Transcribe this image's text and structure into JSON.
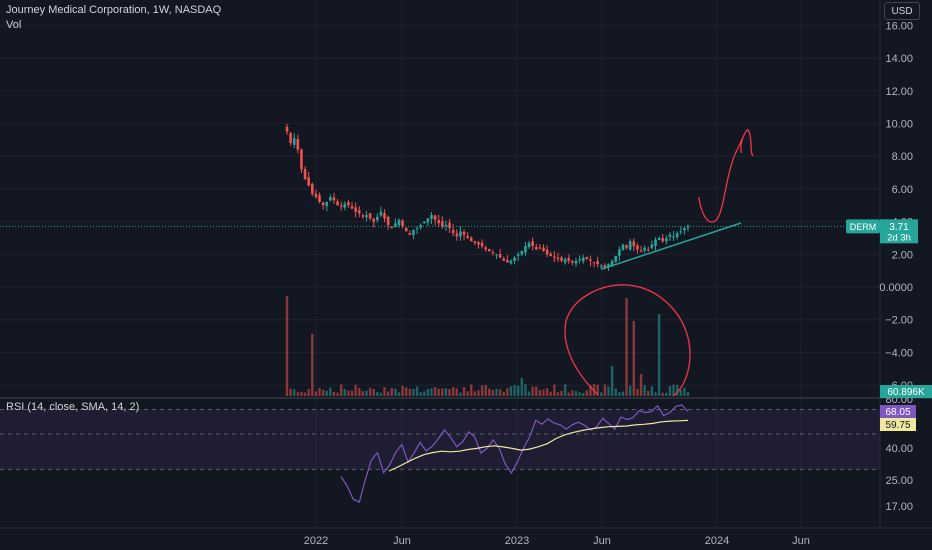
{
  "legend": {
    "title": "Journey Medical Corporation, 1W, NASDAQ",
    "volume": "Vol",
    "rsi": "RSI (14, close, SMA, 14, 2)"
  },
  "currency": "USD",
  "price_axis_labels": [
    "16.00",
    "14.00",
    "12.00",
    "10.00",
    "8.00",
    "6.00",
    "4.00",
    "2.00",
    "0.0000",
    "−2.00",
    "−4.00",
    "−6.00"
  ],
  "rsi_axis_labels": [
    "80.00",
    "60.00",
    "40.00",
    "25.00",
    "17.00"
  ],
  "time_axis_labels": [
    "2022",
    "Jun",
    "2023",
    "Jun",
    "2024",
    "Jun"
  ],
  "badges": {
    "ticker": "DERM",
    "price": "3.71",
    "countdown": "2d 3h",
    "volume": "60.896K",
    "rsi": "68.05",
    "rsi_ma": "59.75"
  },
  "colors": {
    "background": "#131722",
    "up": "#26a69a",
    "down": "#ef5350",
    "rsi": "#7e57c2",
    "rsi_ma": "#f1e8a0",
    "drawing": "#f23645",
    "trendline": "#26a69a"
  },
  "chart_data": [
    {
      "type": "candlestick",
      "title": "Journey Medical Corporation, 1W, NASDAQ",
      "x_range": [
        "2021-11",
        "2024-08"
      ],
      "ylim": [
        -6,
        16
      ],
      "last_price": 3.71,
      "weekly_closes_approx": [
        9.5,
        8.8,
        9.1,
        8.4,
        7.2,
        6.6,
        6.2,
        5.7,
        5.5,
        5.2,
        5.0,
        5.2,
        5.5,
        5.3,
        5.0,
        4.9,
        5.1,
        5.0,
        4.8,
        4.6,
        4.5,
        4.3,
        4.4,
        4.2,
        4.0,
        4.3,
        4.6,
        4.2,
        3.8,
        3.6,
        3.9,
        4.1,
        3.7,
        3.4,
        3.2,
        3.5,
        3.6,
        3.8,
        4.0,
        4.2,
        4.4,
        4.1,
        3.9,
        3.7,
        3.8,
        3.6,
        3.3,
        3.1,
        3.4,
        3.2,
        3.0,
        2.8,
        2.7,
        2.6,
        2.5,
        2.3,
        2.2,
        2.1,
        2.0,
        1.8,
        1.6,
        1.5,
        1.6,
        1.8,
        2.0,
        2.2,
        2.5,
        2.7,
        2.5,
        2.3,
        2.4,
        2.2,
        2.0,
        1.9,
        1.8,
        1.7,
        1.6,
        1.7,
        1.6,
        1.5,
        1.6,
        1.7,
        1.8,
        1.7,
        1.6,
        1.5,
        1.4,
        1.3,
        1.2,
        1.4,
        1.6,
        1.9,
        2.3,
        2.6,
        2.4,
        2.8,
        2.5,
        2.3,
        2.2,
        2.4,
        2.3,
        2.6,
        2.9,
        3.0,
        2.8,
        3.0,
        3.2,
        3.1,
        3.3,
        3.4,
        3.6,
        3.71
      ]
    },
    {
      "type": "bar",
      "title": "Vol",
      "last_value": "60.896K"
    },
    {
      "type": "line",
      "title": "RSI (14, close, SMA, 14, 2)",
      "ylim": [
        10,
        80
      ],
      "series": [
        {
          "values": [
            26.6,
            23.2,
            19.1,
            18.2,
            25.3,
            34.4,
            37.8,
            28.4,
            32.1,
            38.0,
            42.5,
            33.4,
            37.7,
            44.0,
            38.6,
            41.3,
            46.7,
            52.9,
            47.7,
            40.9,
            44.6,
            51.6,
            47.7,
            37.6,
            39.8,
            45.8,
            39.7,
            32.3,
            28.3,
            33.6,
            40.0,
            48.0,
            59.8,
            56.9,
            61.0,
            57.8,
            56.6,
            53.5,
            56.6,
            58.4,
            56.2,
            52.8,
            55.2,
            61.6,
            57.3,
            53.5,
            62.9,
            60.4,
            62.4,
            69.0,
            67.0,
            68.2,
            73.6,
            64.3,
            66.9,
            73.0,
            74.3,
            68.05
          ]
        },
        {
          "values": [
            29.2,
            31.1,
            33.2,
            35.2,
            36.9,
            37.9,
            38.5,
            38.2,
            38.5,
            39.3,
            39.8,
            40.9,
            41.6,
            40.8,
            39.8,
            39.0,
            39.5,
            40.9,
            43.1,
            46.8,
            49.4,
            51.2,
            52.6,
            53.7,
            54.6,
            55.2,
            55.4,
            55.7,
            56.5,
            56.9,
            57.6,
            58.7,
            59.2,
            59.4,
            59.75
          ]
        }
      ]
    }
  ]
}
